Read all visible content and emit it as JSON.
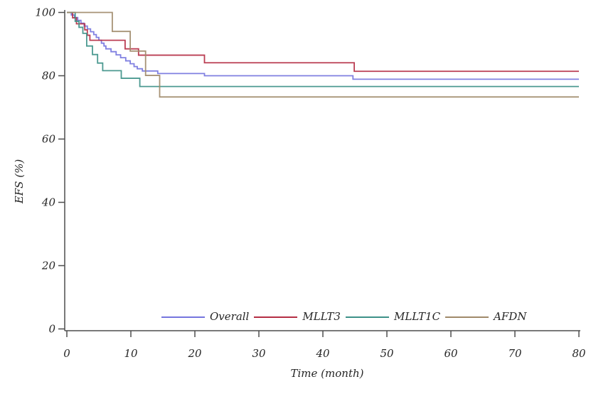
{
  "chart_data": {
    "type": "line",
    "subtype": "kaplan-meier-step",
    "title": "",
    "xlabel": "Time (month)",
    "ylabel": "EFS (%)",
    "xlim": [
      0,
      80
    ],
    "ylim": [
      0,
      100
    ],
    "xticks": [
      0,
      10,
      20,
      30,
      40,
      50,
      60,
      70,
      80
    ],
    "yticks": [
      0,
      20,
      40,
      60,
      80,
      100
    ],
    "grid": false,
    "legend_position": "bottom-inside",
    "axis_color": "#4d4d4d",
    "text_color": "#262626",
    "series": [
      {
        "name": "Overall",
        "color": "#7575de",
        "points": [
          [
            0,
            100
          ],
          [
            0.7,
            99.2
          ],
          [
            1.2,
            98.4
          ],
          [
            1.7,
            97.5
          ],
          [
            2.2,
            96.6
          ],
          [
            2.7,
            95.7
          ],
          [
            3.2,
            94.8
          ],
          [
            3.7,
            93.9
          ],
          [
            4.2,
            93.0
          ],
          [
            4.6,
            92.1
          ],
          [
            5.0,
            91.2
          ],
          [
            5.4,
            90.3
          ],
          [
            5.8,
            89.4
          ],
          [
            6.1,
            88.5
          ],
          [
            6.9,
            87.6
          ],
          [
            7.7,
            86.6
          ],
          [
            8.4,
            85.7
          ],
          [
            9.2,
            84.7
          ],
          [
            9.9,
            83.8
          ],
          [
            10.5,
            82.9
          ],
          [
            11.0,
            82.2
          ],
          [
            11.8,
            81.5
          ],
          [
            14.2,
            80.7
          ],
          [
            21.5,
            80.0
          ],
          [
            44.7,
            78.9
          ]
        ]
      },
      {
        "name": "MLLT3",
        "color": "#b52e44",
        "points": [
          [
            0,
            100
          ],
          [
            0.9,
            98.3
          ],
          [
            1.5,
            96.4
          ],
          [
            2.8,
            94.5
          ],
          [
            3.2,
            92.8
          ],
          [
            3.6,
            91.2
          ],
          [
            9.1,
            88.5
          ],
          [
            11.2,
            86.5
          ],
          [
            21.5,
            84.1
          ],
          [
            44.9,
            81.4
          ]
        ]
      },
      {
        "name": "MLLT1C",
        "color": "#3d9188",
        "points": [
          [
            0,
            100
          ],
          [
            1.3,
            97.2
          ],
          [
            1.9,
            95.3
          ],
          [
            2.5,
            93.4
          ],
          [
            3.1,
            89.4
          ],
          [
            4.0,
            86.7
          ],
          [
            4.8,
            84.0
          ],
          [
            5.6,
            81.6
          ],
          [
            8.5,
            79.2
          ],
          [
            11.4,
            76.6
          ]
        ]
      },
      {
        "name": "AFDN",
        "color": "#a08a6a",
        "points": [
          [
            0,
            100
          ],
          [
            7.1,
            94.0
          ],
          [
            9.9,
            87.8
          ],
          [
            12.3,
            80.1
          ],
          [
            14.5,
            73.3
          ]
        ]
      }
    ]
  }
}
